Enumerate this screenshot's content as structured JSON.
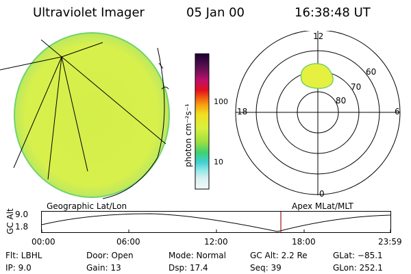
{
  "header": {
    "instrument": "Ultraviolet Imager",
    "date": "05 Jan 00",
    "time": "16:38:48 UT"
  },
  "colorbar": {
    "unit_label": "photon cm⁻²s⁻¹",
    "ticks": [
      "100",
      "10"
    ]
  },
  "polar_plot": {
    "mlt_labels": [
      "12",
      "18",
      "6",
      "0"
    ],
    "lat_labels": [
      "60",
      "70",
      "80"
    ]
  },
  "panel_labels": {
    "left": "Geographic Lat/Lon",
    "right": "Apex MLat/MLT"
  },
  "altitude_plot": {
    "ylabel": "GC Alt",
    "yticks": [
      "9.0",
      "1.8"
    ],
    "xticks": [
      "00:00",
      "06:00",
      "12:00",
      "18:00",
      "23:59"
    ]
  },
  "info": {
    "flt": "Flt: LBHL",
    "ip": "IP:  9.0",
    "door": "Door: Open",
    "gain": "Gain: 13",
    "mode": "Mode: Normal",
    "dsp": "Dsp:   17.4",
    "gcalt": "GC Alt: 2.2 Re",
    "seq": "Seq: 39",
    "glat": "GLat: −85.1",
    "glon": "GLon: 252.1"
  },
  "colors": {
    "earth_fill": "#d8f04a",
    "earth_edge": "#7ad86a",
    "aurora": "#e6f040",
    "current_time_marker": "#a01010"
  }
}
